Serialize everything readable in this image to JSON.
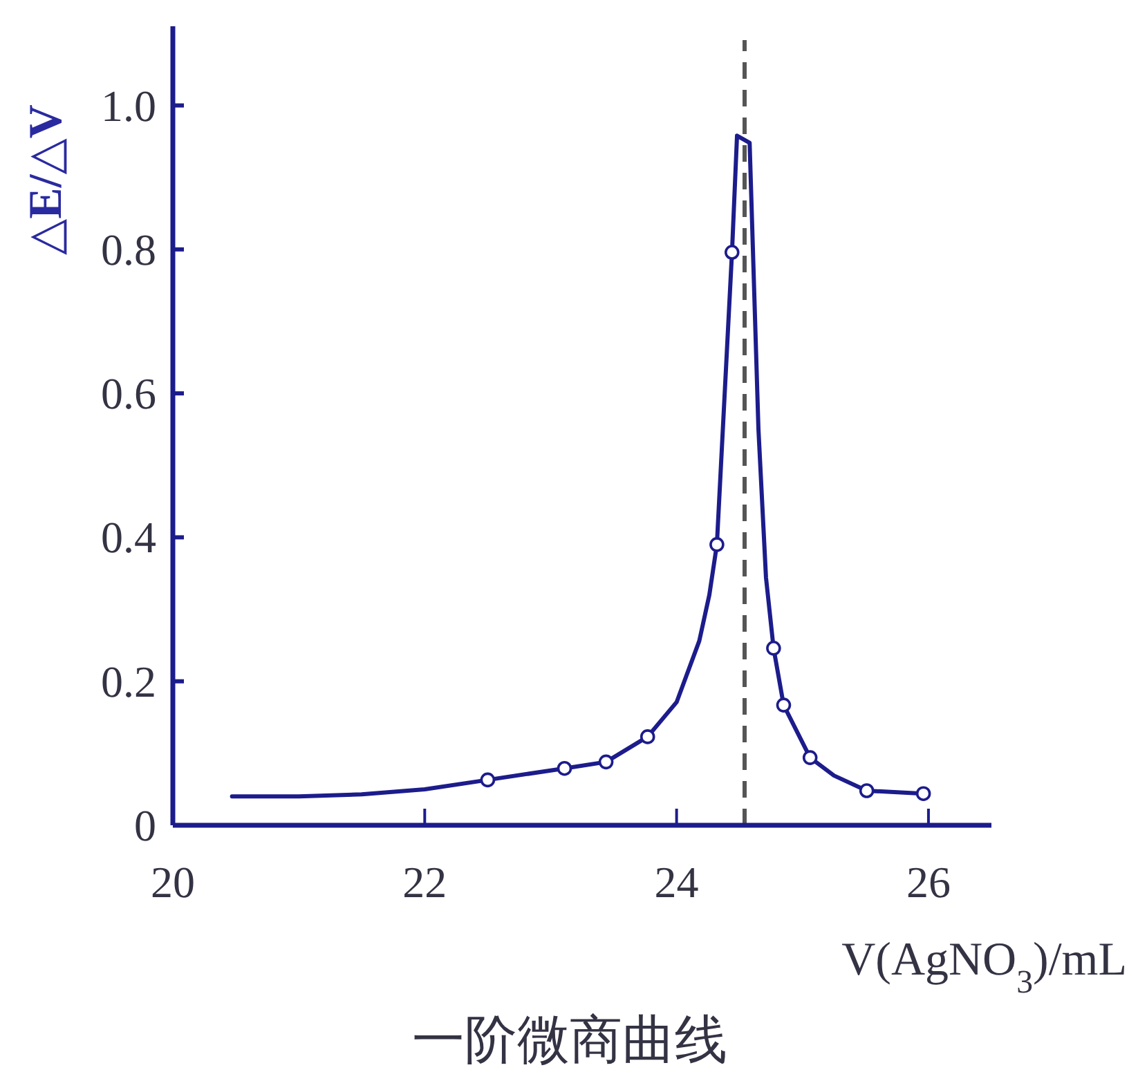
{
  "chart_data": {
    "type": "line",
    "title": "一阶微商曲线",
    "xlabel": "V(AgNO$_{3}$)/mL",
    "ylabel": "△E/△V",
    "xlim": [
      20,
      26.5
    ],
    "ylim": [
      0,
      1.11
    ],
    "xticks": [
      20,
      22,
      24,
      26
    ],
    "yticks": [
      0,
      0.2,
      0.4,
      0.6,
      0.8,
      {
        "value": 1,
        "label": "1.0"
      }
    ],
    "series": [
      {
        "type": "line",
        "marker": "none",
        "color": "#1c1c8c",
        "x": [
          20.47,
          21.0,
          21.5,
          22.0,
          22.5,
          23.11,
          23.44,
          23.77,
          24.0,
          24.18,
          24.26,
          24.32,
          24.44,
          24.48,
          24.58,
          24.65,
          24.71,
          24.77,
          24.85,
          25.06,
          25.25,
          25.51,
          25.96
        ],
        "values": [
          0.04,
          0.04,
          0.043,
          0.05,
          0.063,
          0.079,
          0.088,
          0.123,
          0.171,
          0.256,
          0.32,
          0.39,
          0.796,
          0.958,
          0.948,
          0.55,
          0.344,
          0.246,
          0.167,
          0.094,
          0.069,
          0.048,
          0.044
        ]
      },
      {
        "type": "scatter",
        "marker": "circle",
        "color": "#1c1c8c",
        "x": [
          22.5,
          23.11,
          23.44,
          23.77,
          24.32,
          24.44,
          24.77,
          24.85,
          25.06,
          25.51,
          25.96
        ],
        "values": [
          0.063,
          0.079,
          0.088,
          0.123,
          0.39,
          0.796,
          0.246,
          0.167,
          0.094,
          0.048,
          0.044
        ]
      }
    ],
    "ref_lines": [
      {
        "axis": "x",
        "value": 24.54,
        "color": "#555555",
        "line_style": "dashed"
      }
    ]
  }
}
